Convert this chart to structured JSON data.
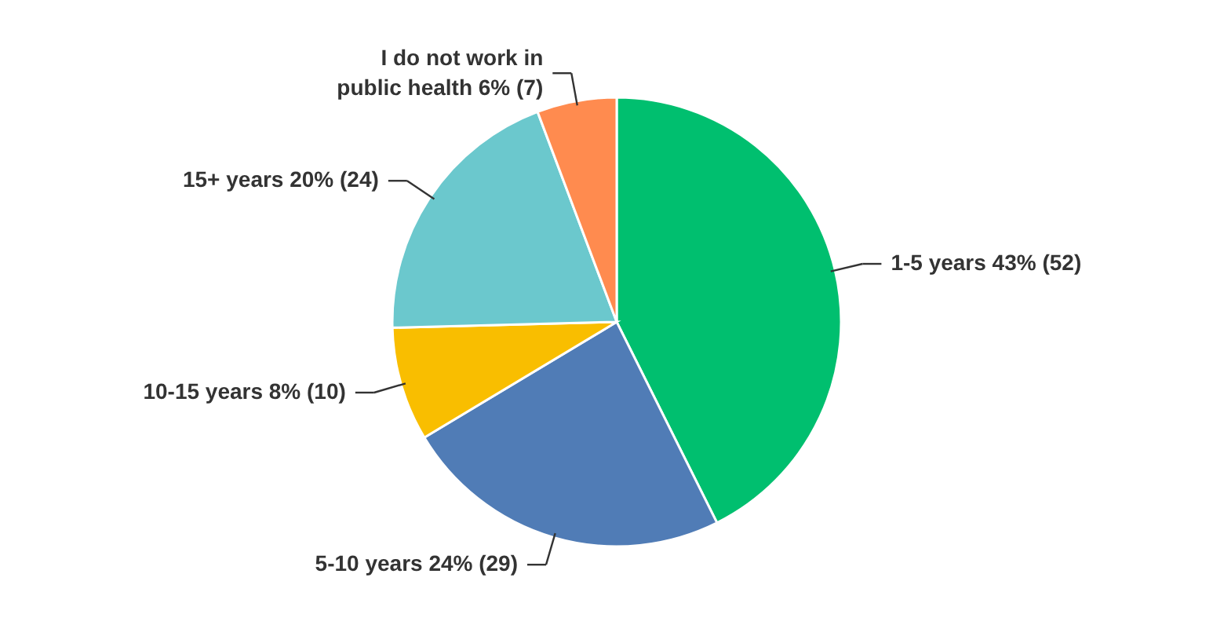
{
  "chart_data": {
    "type": "pie",
    "categories": [
      "1-5 years",
      "5-10 years",
      "10-15 years",
      "15+ years",
      "I do not work in public health"
    ],
    "values": [
      52,
      29,
      10,
      24,
      7
    ],
    "value_labels": [
      "43% (52)",
      "24% (29)",
      "8% (10)",
      "20% (24)",
      "6% (7)"
    ],
    "colors": [
      "#00bf6f",
      "#507cb6",
      "#f9be00",
      "#6bc8cd",
      "#ff8b4f"
    ]
  }
}
